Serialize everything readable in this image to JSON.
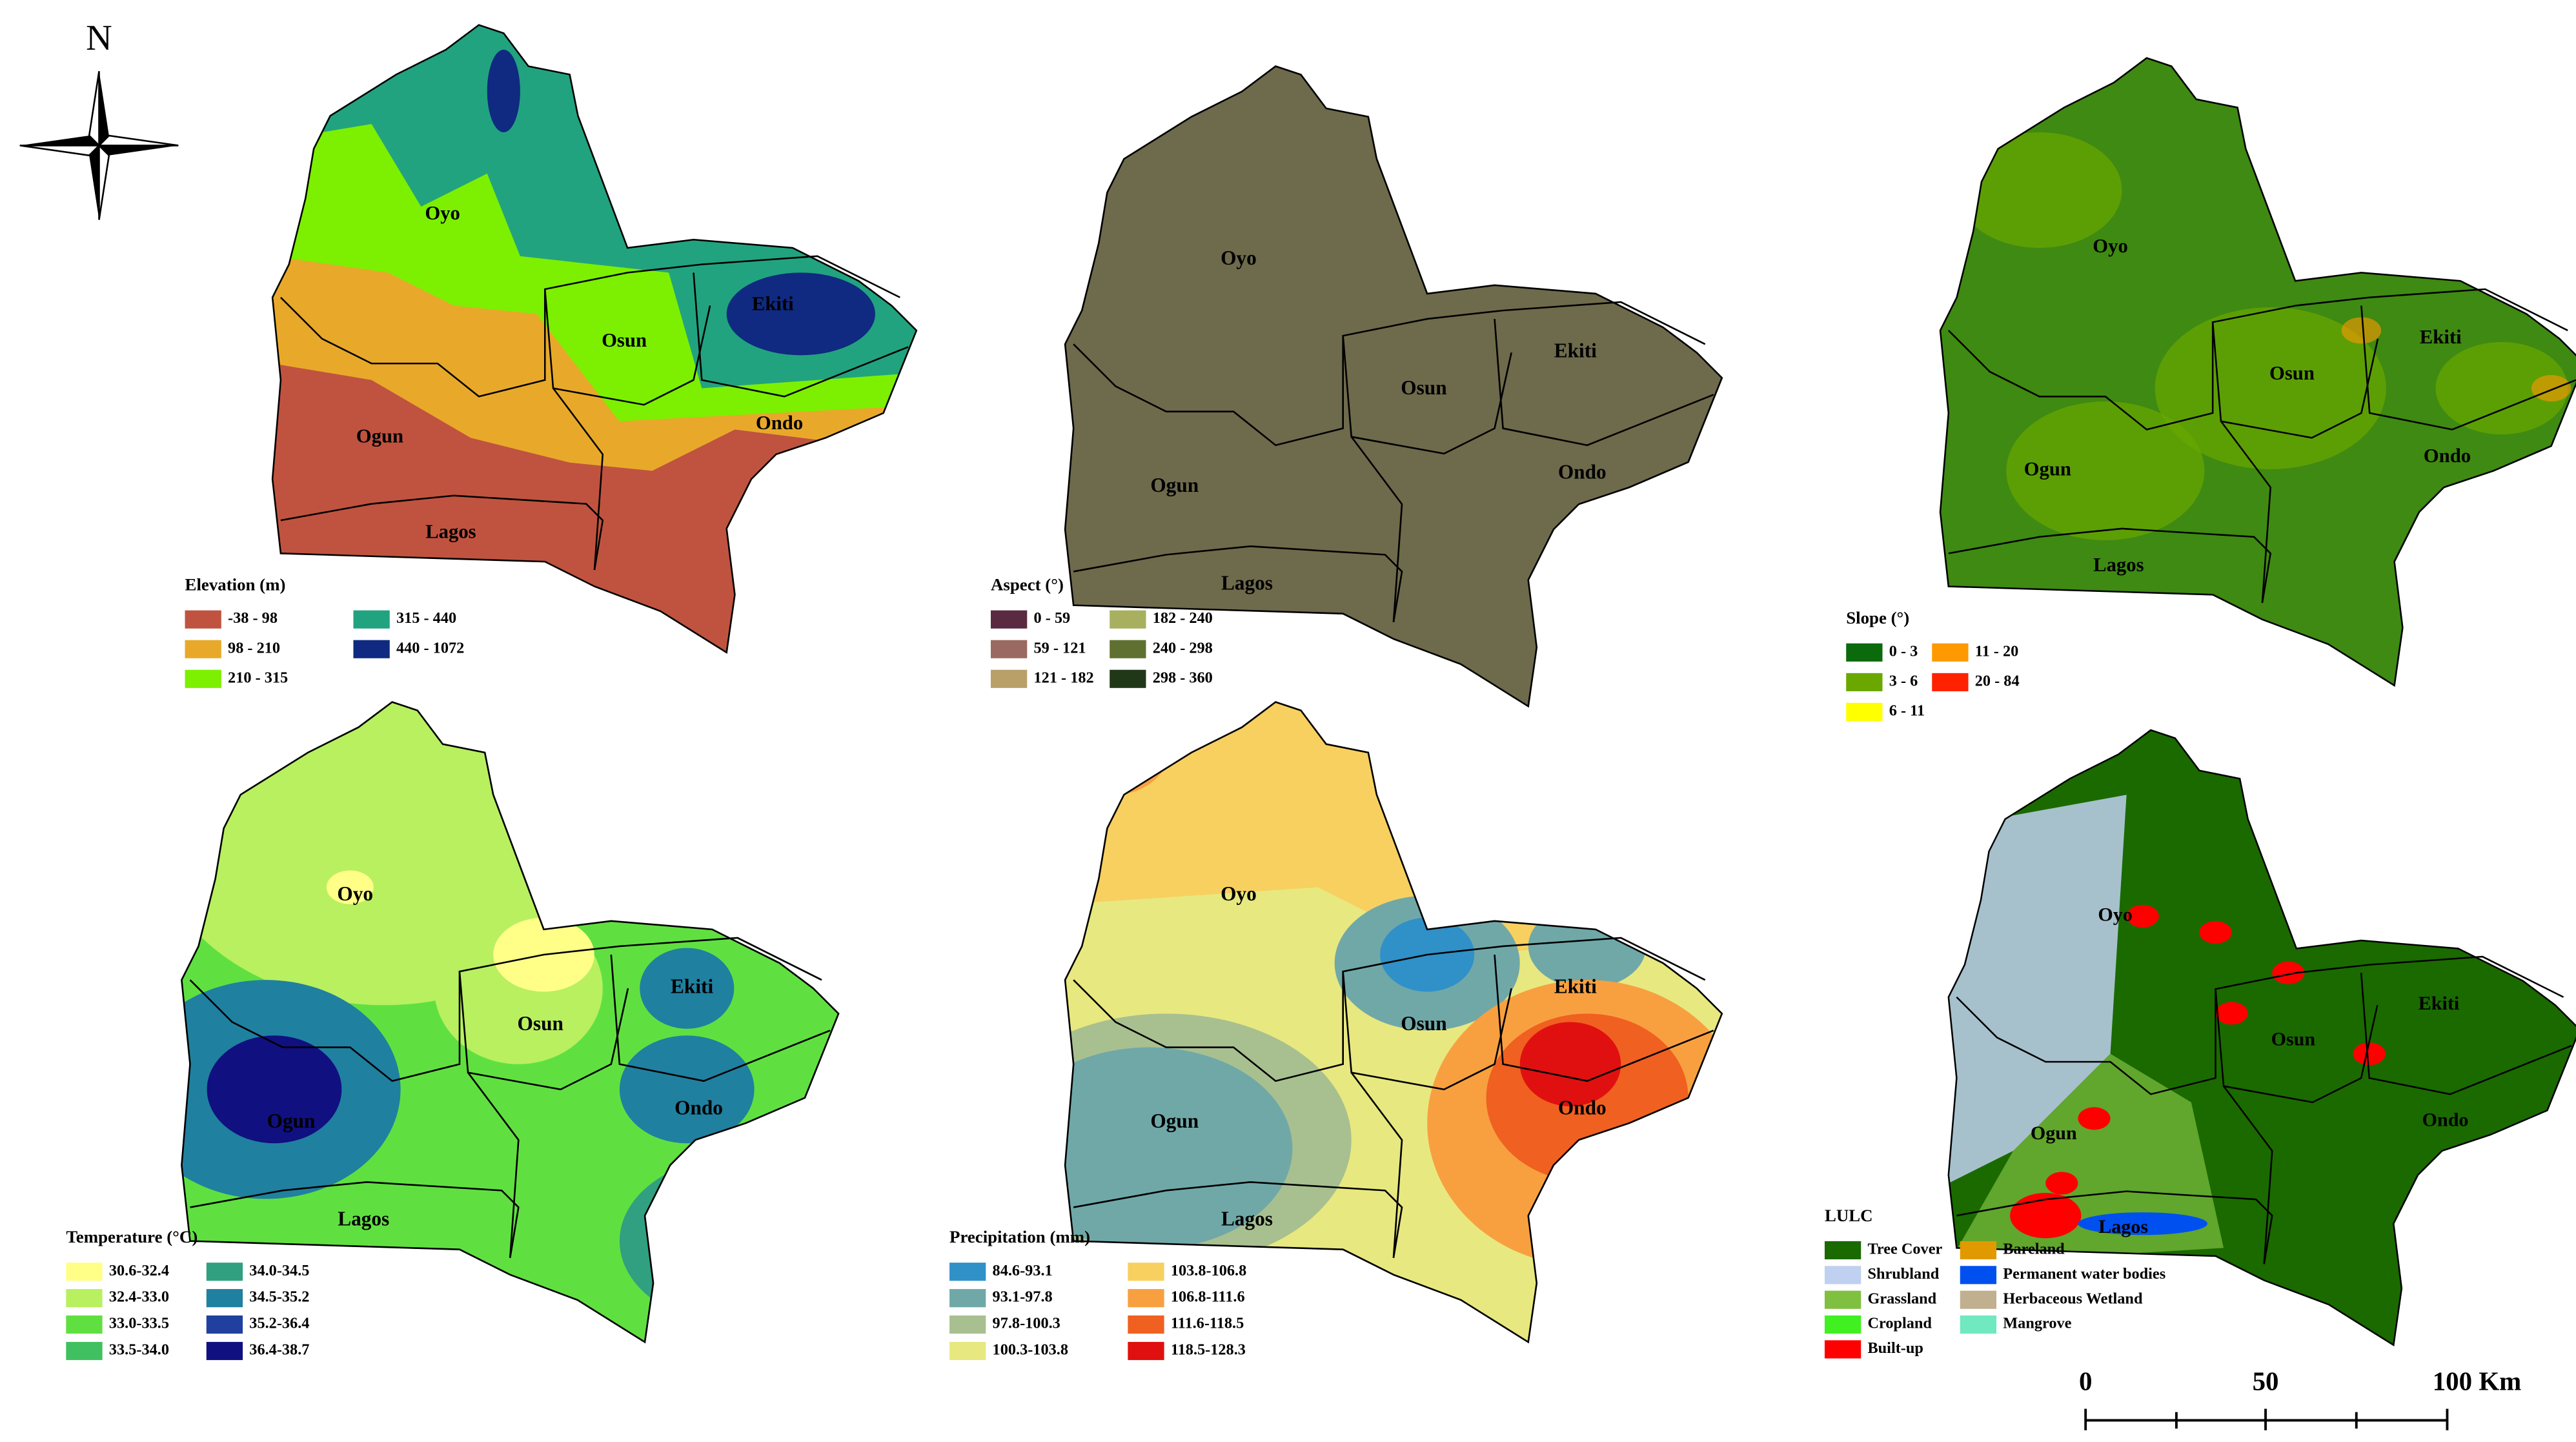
{
  "north": "N",
  "scale_bar": {
    "labels": [
      "0",
      "50",
      "100 Km"
    ]
  },
  "panels": [
    {
      "title": "Elevation (m)",
      "state_labels": [
        "Oyo",
        "Osun",
        "Ekiti",
        "Ogun",
        "Ondo",
        "Lagos"
      ],
      "legend": [
        {
          "label": "-38 - 98",
          "color": "#c0533f"
        },
        {
          "label": "98 - 210",
          "color": "#e8a92a"
        },
        {
          "label": "210 - 315",
          "color": "#7cf000"
        },
        {
          "label": "315 - 440",
          "color": "#22a37f"
        },
        {
          "label": "440 - 1072",
          "color": "#0f2a80"
        }
      ]
    },
    {
      "title": "Aspect (°)",
      "state_labels": [
        "Oyo",
        "Osun",
        "Ekiti",
        "Ogun",
        "Ondo",
        "Lagos"
      ],
      "legend": [
        {
          "label": "0 - 59",
          "color": "#5a2a40"
        },
        {
          "label": "59 - 121",
          "color": "#9a6a60"
        },
        {
          "label": "121 - 182",
          "color": "#b8a068"
        },
        {
          "label": "182 - 240",
          "color": "#a8b060"
        },
        {
          "label": "240 - 298",
          "color": "#607030"
        },
        {
          "label": "298 - 360",
          "color": "#203818"
        }
      ]
    },
    {
      "title": "Slope (°)",
      "state_labels": [
        "Oyo",
        "Osun",
        "Ekiti",
        "Ogun",
        "Ondo",
        "Lagos"
      ],
      "legend": [
        {
          "label": "0 - 3",
          "color": "#0b6a0b"
        },
        {
          "label": "3 - 6",
          "color": "#6aa800"
        },
        {
          "label": "6 - 11",
          "color": "#ffff00"
        },
        {
          "label": "11 - 20",
          "color": "#ff9900"
        },
        {
          "label": "20 - 84",
          "color": "#ff2200"
        }
      ]
    },
    {
      "title": "Temperature (°C)",
      "state_labels": [
        "Oyo",
        "Osun",
        "Ekiti",
        "Ogun",
        "Ondo",
        "Lagos"
      ],
      "legend": [
        {
          "label": "30.6-32.4",
          "color": "#ffff88"
        },
        {
          "label": "32.4-33.0",
          "color": "#b8f060"
        },
        {
          "label": "33.0-33.5",
          "color": "#60e040"
        },
        {
          "label": "33.5-34.0",
          "color": "#40c060"
        },
        {
          "label": "34.0-34.5",
          "color": "#30a080"
        },
        {
          "label": "34.5-35.2",
          "color": "#2080a0"
        },
        {
          "label": "35.2-36.4",
          "color": "#2040a0"
        },
        {
          "label": "36.4-38.7",
          "color": "#101080"
        }
      ]
    },
    {
      "title": "Precipitation (mm)",
      "state_labels": [
        "Oyo",
        "Osun",
        "Ekiti",
        "Ogun",
        "Ondo",
        "Lagos"
      ],
      "legend": [
        {
          "label": "84.6-93.1",
          "color": "#3090c8"
        },
        {
          "label": "93.1-97.8",
          "color": "#70a8a8"
        },
        {
          "label": "97.8-100.3",
          "color": "#a8c090"
        },
        {
          "label": "100.3-103.8",
          "color": "#e8e880"
        },
        {
          "label": "103.8-106.8",
          "color": "#f8d060"
        },
        {
          "label": "106.8-111.6",
          "color": "#f8a040"
        },
        {
          "label": "111.6-118.5",
          "color": "#f06020"
        },
        {
          "label": "118.5-128.3",
          "color": "#e01010"
        }
      ]
    },
    {
      "title": "LULC",
      "state_labels": [
        "Oyo",
        "Osun",
        "Ekiti",
        "Ogun",
        "Ondo",
        "Lagos"
      ],
      "legend": [
        {
          "label": "Tree Cover",
          "color": "#1a6a00"
        },
        {
          "label": "Shrubland",
          "color": "#c0d0f0"
        },
        {
          "label": "Grassland",
          "color": "#80c040"
        },
        {
          "label": "Cropland",
          "color": "#40f020"
        },
        {
          "label": "Built-up",
          "color": "#ff0000"
        },
        {
          "label": "Bareland",
          "color": "#e09a00"
        },
        {
          "label": "Permanent water bodies",
          "color": "#0050f0"
        },
        {
          "label": "Herbaceous Wetland",
          "color": "#c0b090"
        },
        {
          "label": "Mangrove",
          "color": "#70e8c0"
        }
      ]
    }
  ]
}
